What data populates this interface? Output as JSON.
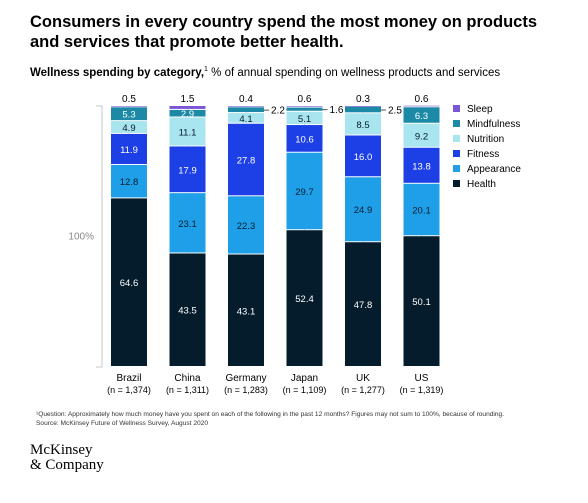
{
  "headline": "Consumers in every country spend the most money on products and services that promote better health.",
  "subtitle": {
    "bold": "Wellness spending by category,",
    "note_marker": "1",
    "rest": " % of annual spending on wellness products and services"
  },
  "footnotes": [
    "¹Question: Approximately how much money have you spent on each of the following in the past 12 months? Figures may not sum to 100%, because of rounding.",
    "Source: McKinsey Future of Wellness Survey, August 2020"
  ],
  "logo": {
    "line1": "McKinsey",
    "line2": "& Company"
  },
  "chart_data": {
    "type": "bar",
    "stacked": true,
    "categories": [
      "Brazil",
      "China",
      "Germany",
      "Japan",
      "UK",
      "US"
    ],
    "sample_sizes": [
      "(n = 1,374)",
      "(n = 1,311)",
      "(n = 1,283)",
      "(n = 1,109)",
      "(n = 1,277)",
      "(n = 1,319)"
    ],
    "total_label": "100%",
    "ylim": [
      0,
      100
    ],
    "series": [
      {
        "name": "Health",
        "color": "#051c2c",
        "label_color": "#ffffff",
        "values": [
          64.6,
          43.5,
          43.1,
          52.4,
          47.8,
          50.1
        ]
      },
      {
        "name": "Appearance",
        "color": "#1f9fe8",
        "label_color": "#051c2c",
        "values": [
          12.8,
          23.1,
          22.3,
          29.7,
          24.9,
          20.1
        ]
      },
      {
        "name": "Fitness",
        "color": "#1c3fe6",
        "label_color": "#ffffff",
        "values": [
          11.9,
          17.9,
          27.8,
          10.6,
          16.0,
          13.8
        ]
      },
      {
        "name": "Nutrition",
        "color": "#a8e5ef",
        "label_color": "#051c2c",
        "values": [
          4.9,
          11.1,
          4.1,
          5.1,
          8.5,
          9.2
        ]
      },
      {
        "name": "Mindfulness",
        "color": "#1c8aa6",
        "label_color": "#ffffff",
        "values": [
          5.3,
          2.9,
          2.2,
          1.6,
          2.5,
          6.3
        ]
      },
      {
        "name": "Sleep",
        "color": "#7b55d6",
        "label_color": "#051c2c",
        "values": [
          0.5,
          1.5,
          0.4,
          0.6,
          0.3,
          0.6
        ]
      }
    ],
    "legend": {
      "placement": "right",
      "order": [
        "Sleep",
        "Mindfulness",
        "Nutrition",
        "Fitness",
        "Appearance",
        "Health"
      ]
    },
    "value_labels": [
      {
        "category": "Brazil",
        "series": "Sleep",
        "text": "0.5",
        "position": "above"
      },
      {
        "category": "Brazil",
        "series": "Mindfulness",
        "text": "5.3",
        "position": "inside"
      },
      {
        "category": "Brazil",
        "series": "Nutrition",
        "text": "4.9",
        "position": "inside"
      },
      {
        "category": "Brazil",
        "series": "Fitness",
        "text": "11.9",
        "position": "inside"
      },
      {
        "category": "Brazil",
        "series": "Appearance",
        "text": "12.8",
        "position": "inside"
      },
      {
        "category": "Brazil",
        "series": "Health",
        "text": "64.6",
        "position": "inside"
      },
      {
        "category": "China",
        "series": "Sleep",
        "text": "1.5",
        "position": "above"
      },
      {
        "category": "China",
        "series": "Mindfulness",
        "text": "2.9",
        "position": "inside"
      },
      {
        "category": "China",
        "series": "Nutrition",
        "text": "11.1",
        "position": "inside"
      },
      {
        "category": "China",
        "series": "Fitness",
        "text": "17.9",
        "position": "inside"
      },
      {
        "category": "China",
        "series": "Appearance",
        "text": "23.1",
        "position": "inside"
      },
      {
        "category": "China",
        "series": "Health",
        "text": "43.5",
        "position": "inside"
      },
      {
        "category": "Germany",
        "series": "Sleep",
        "text": "0.4",
        "position": "above"
      },
      {
        "category": "Germany",
        "series": "Mindfulness",
        "text": "2.2",
        "position": "right"
      },
      {
        "category": "Germany",
        "series": "Nutrition",
        "text": "4.1",
        "position": "inside"
      },
      {
        "category": "Germany",
        "series": "Fitness",
        "text": "27.8",
        "position": "inside"
      },
      {
        "category": "Germany",
        "series": "Appearance",
        "text": "22.3",
        "position": "inside"
      },
      {
        "category": "Germany",
        "series": "Health",
        "text": "43.1",
        "position": "inside"
      },
      {
        "category": "Japan",
        "series": "Sleep",
        "text": "0.6",
        "position": "above"
      },
      {
        "category": "Japan",
        "series": "Mindfulness",
        "text": "1.6",
        "position": "right"
      },
      {
        "category": "Japan",
        "series": "Nutrition",
        "text": "5.1",
        "position": "inside"
      },
      {
        "category": "Japan",
        "series": "Fitness",
        "text": "10.6",
        "position": "inside"
      },
      {
        "category": "Japan",
        "series": "Appearance",
        "text": "29.7",
        "position": "inside"
      },
      {
        "category": "Japan",
        "series": "Health",
        "text": "52.4",
        "position": "inside"
      },
      {
        "category": "UK",
        "series": "Sleep",
        "text": "0.3",
        "position": "above"
      },
      {
        "category": "UK",
        "series": "Mindfulness",
        "text": "2.5",
        "position": "right"
      },
      {
        "category": "UK",
        "series": "Nutrition",
        "text": "8.5",
        "position": "inside"
      },
      {
        "category": "UK",
        "series": "Fitness",
        "text": "16.0",
        "position": "inside"
      },
      {
        "category": "UK",
        "series": "Appearance",
        "text": "24.9",
        "position": "inside"
      },
      {
        "category": "UK",
        "series": "Health",
        "text": "47.8",
        "position": "inside"
      },
      {
        "category": "US",
        "series": "Sleep",
        "text": "0.6",
        "position": "above"
      },
      {
        "category": "US",
        "series": "Mindfulness",
        "text": "6.3",
        "position": "inside"
      },
      {
        "category": "US",
        "series": "Nutrition",
        "text": "9.2",
        "position": "inside"
      },
      {
        "category": "US",
        "series": "Fitness",
        "text": "13.8",
        "position": "inside"
      },
      {
        "category": "US",
        "series": "Appearance",
        "text": "20.1",
        "position": "inside"
      },
      {
        "category": "US",
        "series": "Health",
        "text": "50.1",
        "position": "inside"
      }
    ]
  }
}
